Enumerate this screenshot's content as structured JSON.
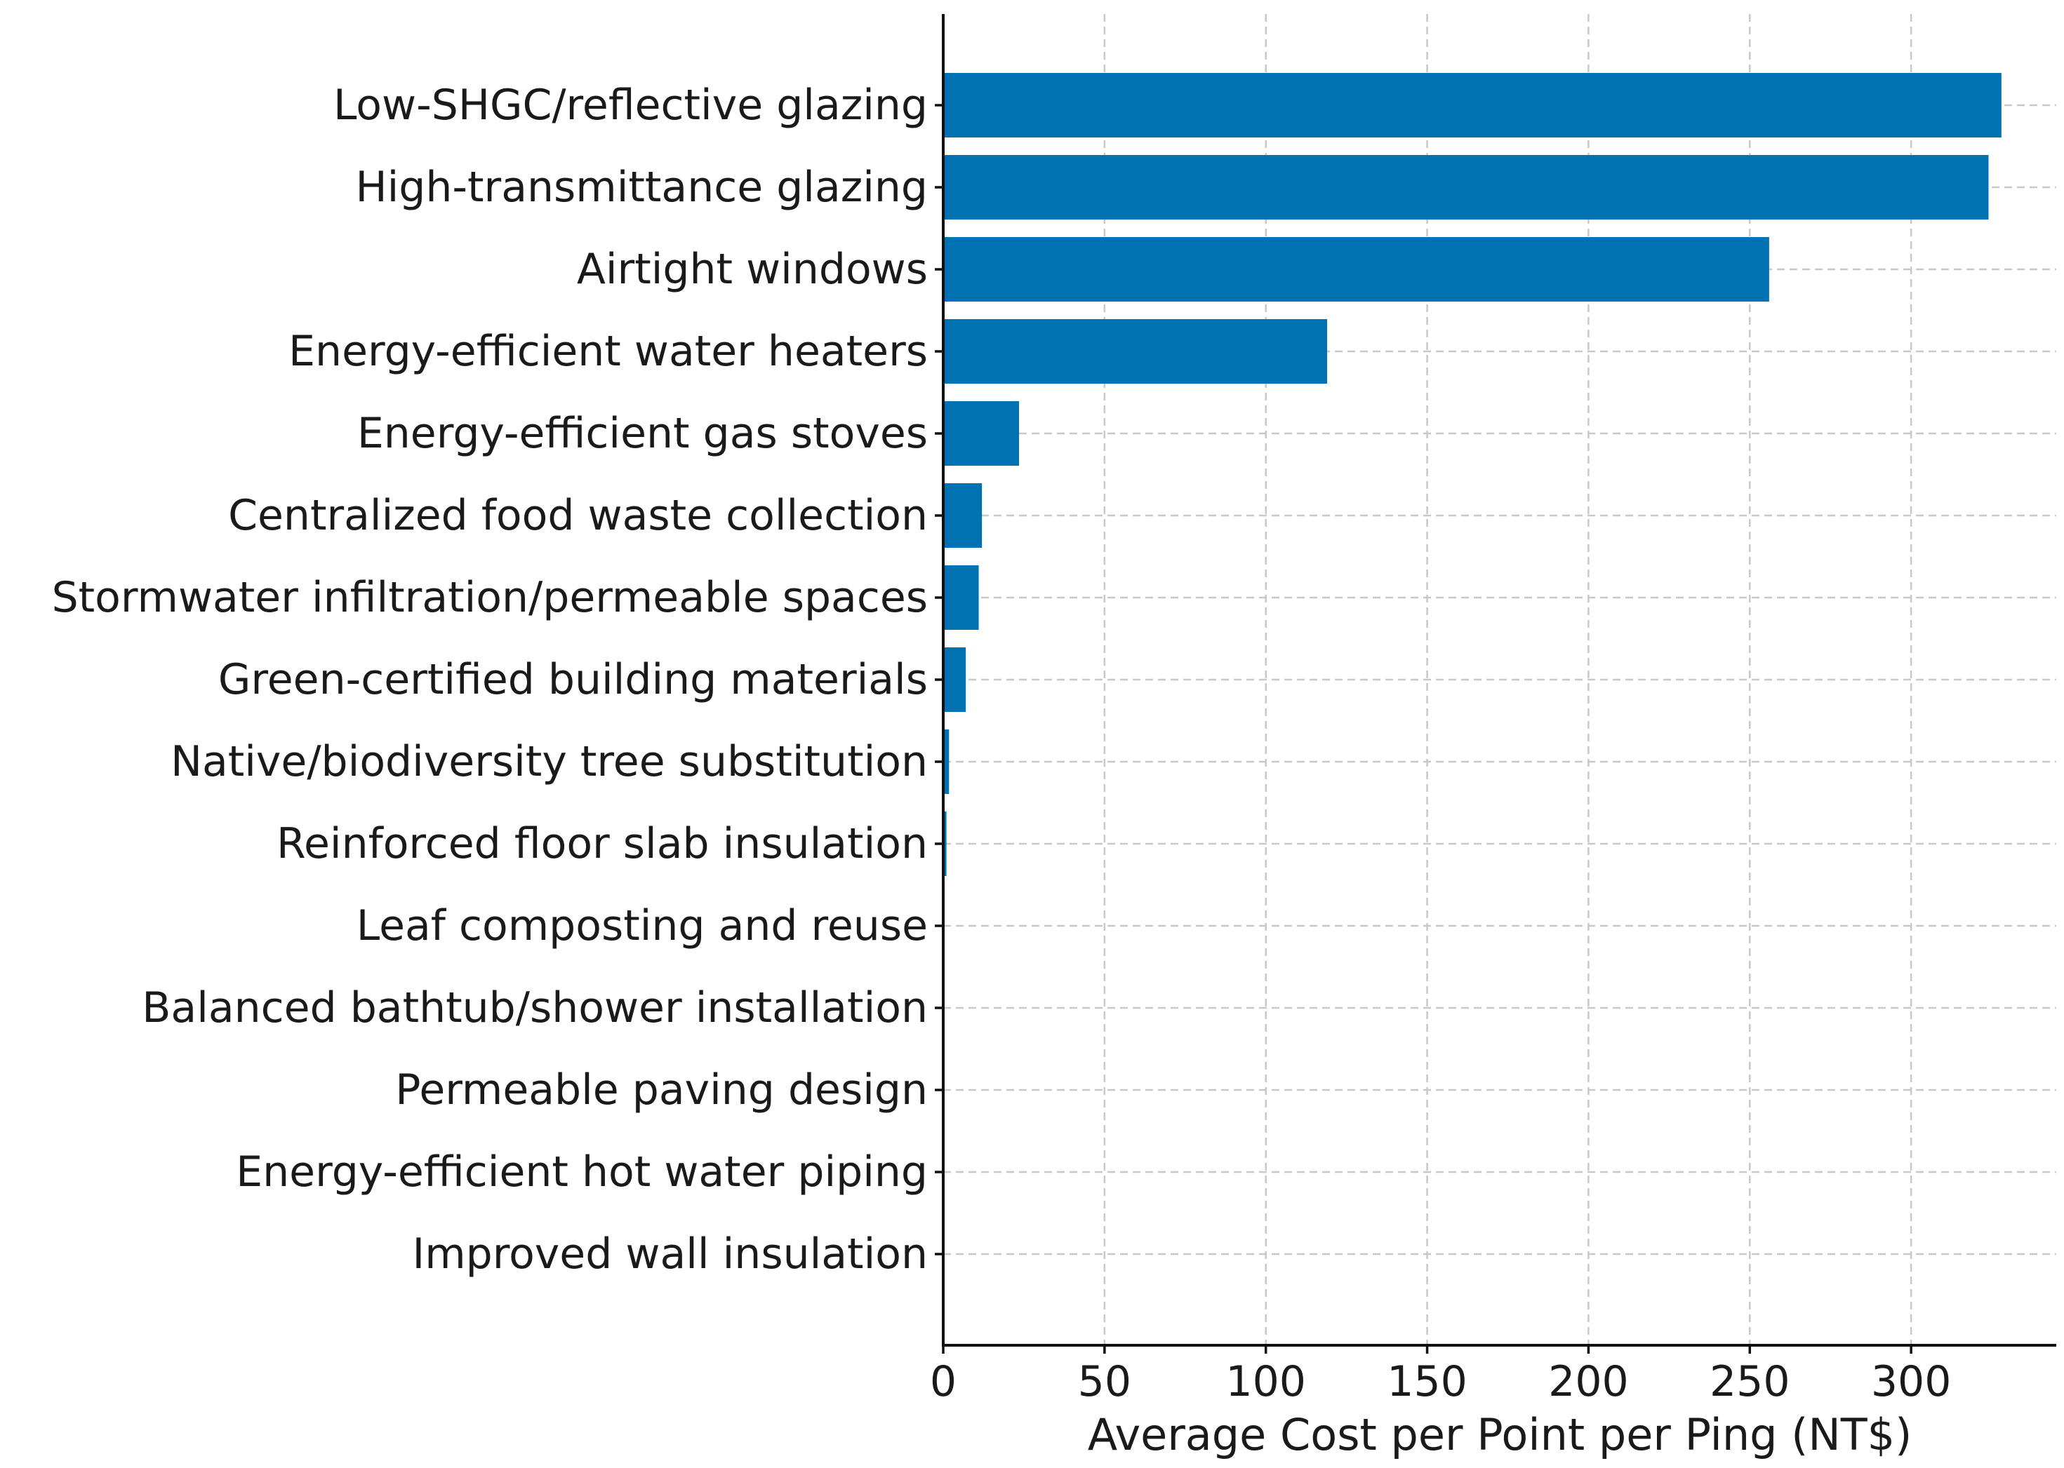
{
  "chart_data": {
    "type": "bar",
    "orientation": "horizontal",
    "title": "",
    "xlabel": "Average Cost per Point per Ping (NT$)",
    "ylabel": "",
    "xlim": [
      0,
      345
    ],
    "xticks": [
      0,
      50,
      100,
      150,
      200,
      250,
      300
    ],
    "grid": true,
    "bar_color": "#0072b2",
    "categories": [
      "Low-SHGC/reflective glazing",
      "High-transmittance glazing",
      "Airtight windows",
      "Energy-efficient water heaters",
      "Energy-efficient gas stoves",
      "Centralized food waste collection",
      "Stormwater infiltration/permeable spaces",
      "Green-certified building materials",
      "Native/biodiversity tree substitution",
      "Reinforced floor slab insulation",
      "Leaf composting and reuse",
      "Balanced bathtub/shower installation",
      "Permeable paving design",
      "Energy-efficient hot water piping",
      "Improved wall insulation"
    ],
    "values": [
      328,
      324,
      256,
      119,
      23.5,
      12,
      11,
      7,
      1.8,
      1.0,
      0.3,
      0.2,
      0.2,
      0.2,
      0.2
    ]
  }
}
